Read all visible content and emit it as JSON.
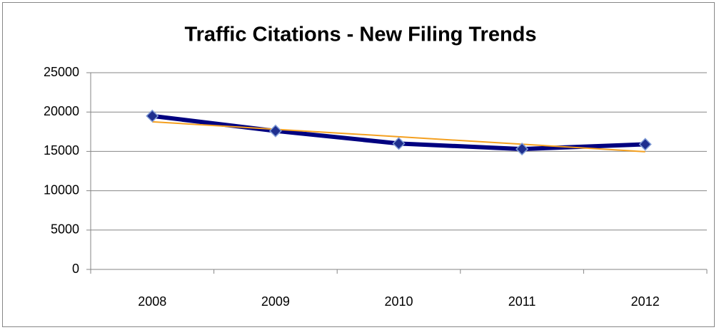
{
  "chart_data": {
    "type": "line",
    "title": "Traffic Citations - New Filing Trends",
    "categories": [
      "2008",
      "2009",
      "2010",
      "2011",
      "2012"
    ],
    "series": [
      {
        "name": "Traffic Citations",
        "color": "#000080",
        "marker_color": "#1f2f8f",
        "values": [
          19500,
          17600,
          16000,
          15300,
          15900
        ]
      }
    ],
    "trendline": {
      "type": "linear",
      "color": "#f4a020"
    },
    "ylim": [
      0,
      25000
    ],
    "yticks": [
      0,
      5000,
      10000,
      15000,
      20000,
      25000
    ],
    "grid": true,
    "legend": false
  }
}
